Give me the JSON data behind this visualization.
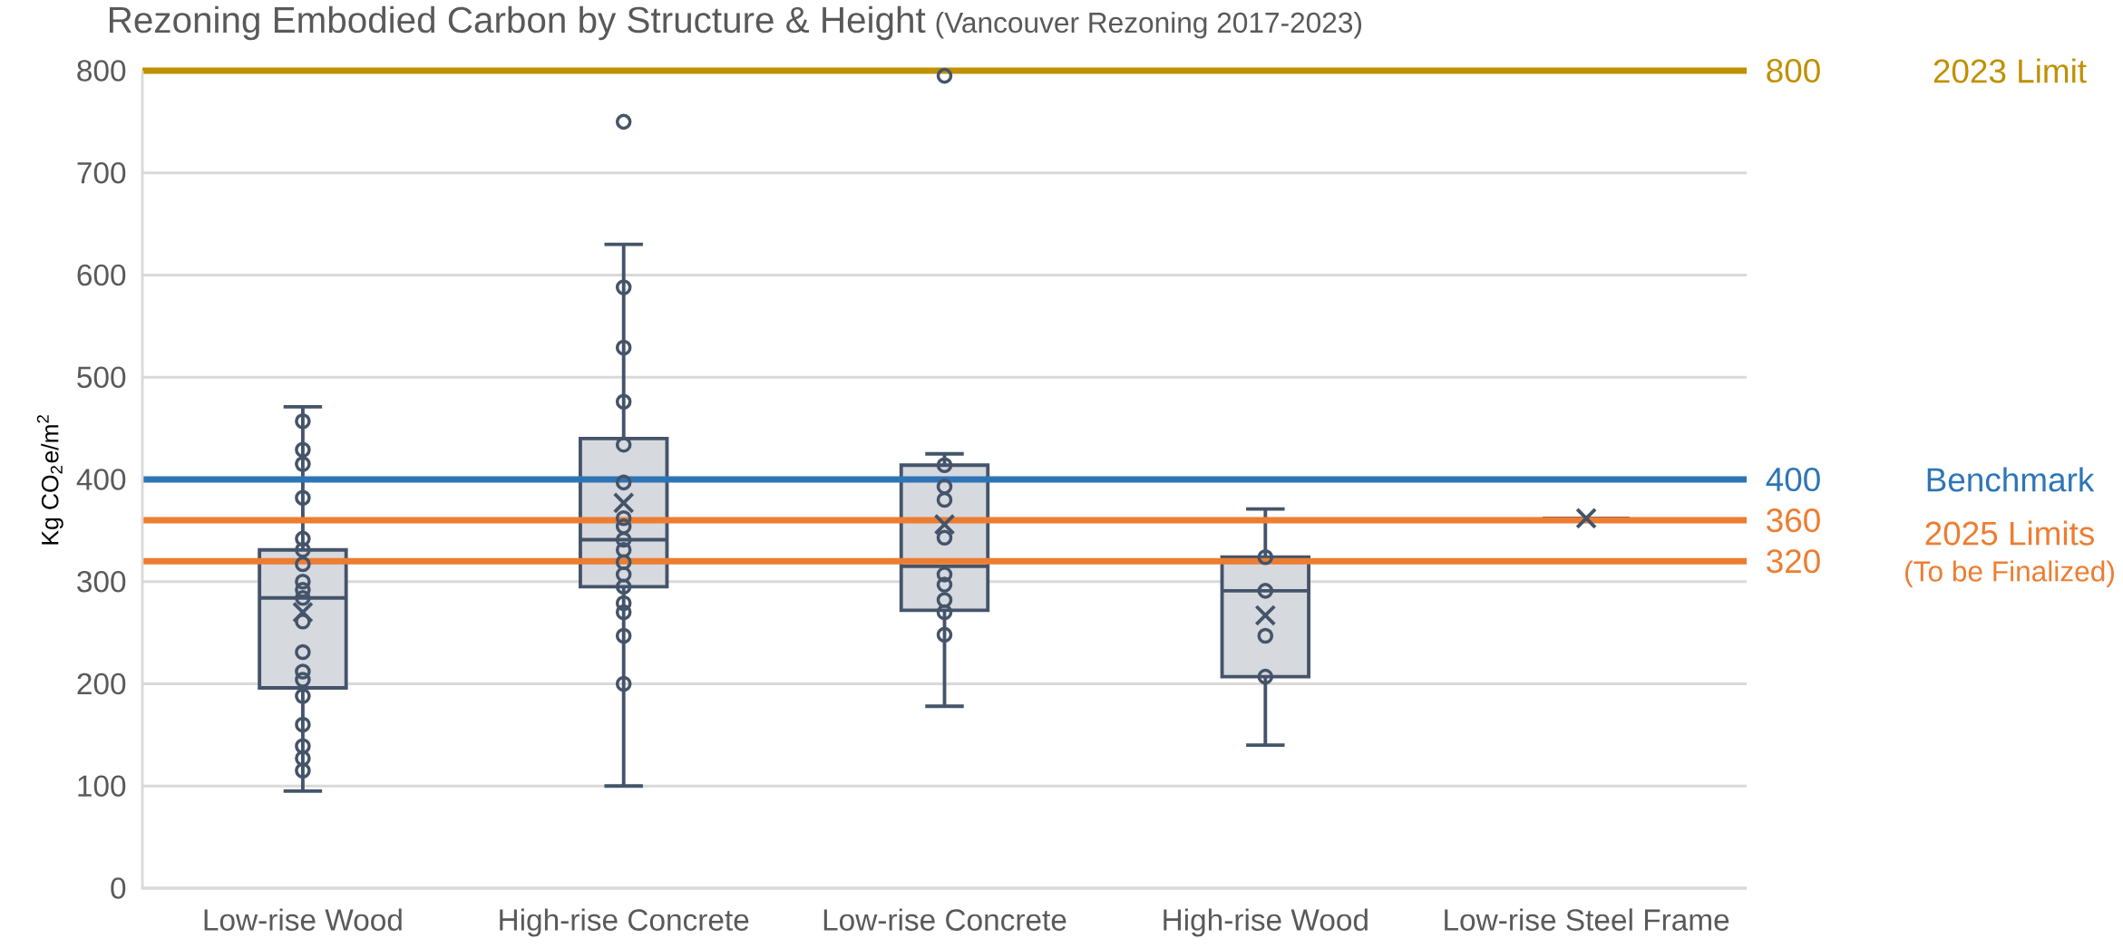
{
  "chart_data": {
    "type": "box",
    "title": "Rezoning Embodied Carbon by Structure & Height",
    "subtitle": "(Vancouver Rezoning 2017-2023)",
    "ylabel": "Kg CO$_{2}$e/m$^{2}$",
    "categories": [
      "Low-rise Wood",
      "High-rise Concrete",
      "Low-rise Concrete",
      "High-rise Wood",
      "Low-rise Steel Frame"
    ],
    "ylim": [
      0,
      800
    ],
    "yticks": [
      0,
      100,
      200,
      300,
      400,
      500,
      600,
      700,
      800
    ],
    "grid": "y",
    "series": [
      {
        "color": "#44546a",
        "boxes": [
          {
            "low": 95,
            "q1": 196,
            "median": 284,
            "q3": 331,
            "high": 471,
            "mean": 270
          },
          {
            "low": 100,
            "q1": 295,
            "median": 341,
            "q3": 440,
            "high": 630,
            "mean": 377,
            "outliers": [
              750
            ]
          },
          {
            "low": 178,
            "q1": 272,
            "median": 315,
            "q3": 414,
            "high": 425,
            "mean": 356,
            "outliers": [
              795
            ]
          },
          {
            "low": 140,
            "q1": 207,
            "median": 291,
            "q3": 324,
            "high": 371,
            "mean": 267
          },
          {
            "low": 362,
            "q1": 362,
            "median": 362,
            "q3": 362,
            "high": 362,
            "mean": 362
          }
        ]
      },
      {
        "type": "scatter",
        "color": "#44546a",
        "marker": "circle",
        "x": [
          "Low-rise Wood",
          "Low-rise Wood",
          "Low-rise Wood",
          "Low-rise Wood",
          "Low-rise Wood",
          "Low-rise Wood",
          "Low-rise Wood",
          "Low-rise Wood",
          "Low-rise Wood",
          "Low-rise Wood",
          "Low-rise Wood",
          "Low-rise Wood",
          "Low-rise Wood",
          "Low-rise Wood",
          "Low-rise Wood",
          "Low-rise Wood",
          "Low-rise Wood",
          "Low-rise Wood",
          "Low-rise Wood",
          "High-rise Concrete",
          "High-rise Concrete",
          "High-rise Concrete",
          "High-rise Concrete",
          "High-rise Concrete",
          "High-rise Concrete",
          "High-rise Concrete",
          "High-rise Concrete",
          "High-rise Concrete",
          "High-rise Concrete",
          "High-rise Concrete",
          "High-rise Concrete",
          "High-rise Concrete",
          "High-rise Concrete",
          "High-rise Concrete",
          "High-rise Concrete",
          "Low-rise Concrete",
          "Low-rise Concrete",
          "Low-rise Concrete",
          "Low-rise Concrete",
          "Low-rise Concrete",
          "Low-rise Concrete",
          "Low-rise Concrete",
          "Low-rise Concrete",
          "Low-rise Concrete",
          "High-rise Wood",
          "High-rise Wood",
          "High-rise Wood",
          "High-rise Wood"
        ],
        "values": [
          457,
          429,
          415,
          382,
          342,
          331,
          317,
          300,
          292,
          284,
          261,
          231,
          212,
          204,
          188,
          160,
          139,
          127,
          115,
          588,
          529,
          476,
          434,
          397,
          362,
          354,
          341,
          331,
          319,
          307,
          295,
          279,
          270,
          247,
          200,
          414,
          393,
          380,
          343,
          307,
          297,
          282,
          270,
          248,
          324,
          291,
          247,
          207
        ]
      }
    ],
    "ref_lines": [
      {
        "axis": "y",
        "value": 800,
        "label": "800",
        "color": "#bf9000"
      },
      {
        "axis": "y",
        "value": 400,
        "label": "400",
        "color": "#2e75b6"
      },
      {
        "axis": "y",
        "value": 360,
        "label": "360",
        "color": "#ed7d31"
      },
      {
        "axis": "y",
        "value": 320,
        "label": "320",
        "color": "#ed7d31"
      }
    ],
    "annotations": [
      "2023 Limit",
      "Benchmark",
      "2025 Limits",
      "(To be Finalized)"
    ]
  }
}
